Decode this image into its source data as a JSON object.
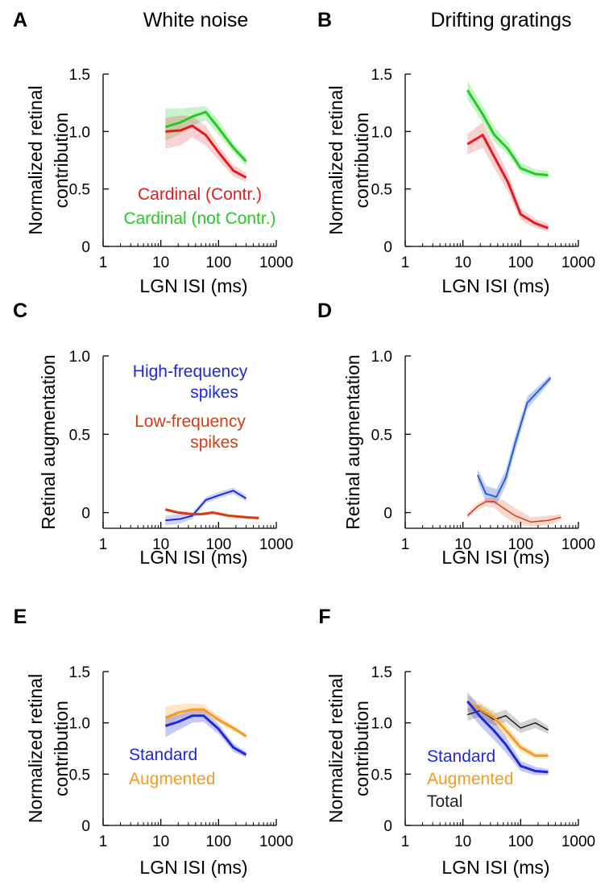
{
  "column_titles": [
    "White noise",
    "Drifting gratings"
  ],
  "colors": {
    "red": "#e8191c",
    "darkred": "#d93a10",
    "green": "#22cc22",
    "blue": "#1a28e0",
    "blue_light": "#2a5ed8",
    "orange": "#f39c1e",
    "black": "#222222"
  },
  "chart_data": [
    {
      "panel": "A",
      "type": "line",
      "xlabel": "LGN ISI (ms)",
      "ylabel": [
        "Normalized retinal",
        "contribution"
      ],
      "xscale": "log",
      "xlim": [
        1,
        1000
      ],
      "ylim": [
        0,
        1.5
      ],
      "xticks": [
        1,
        10,
        100,
        1000
      ],
      "xtick_labels": [
        "1",
        "10",
        "100",
        "1000"
      ],
      "yticks": [
        0,
        0.5,
        1.0,
        1.5
      ],
      "ytick_labels": [
        "0",
        "0.5",
        "1.0",
        "1.5"
      ],
      "series": [
        {
          "name": "Cardinal (not Contr.)",
          "color": "green",
          "width": 3,
          "band_opacity": 0.25,
          "x": [
            12,
            22,
            35,
            60,
            100,
            180,
            300
          ],
          "y": [
            1.04,
            1.08,
            1.13,
            1.17,
            1.03,
            0.86,
            0.74
          ],
          "lo": [
            0.92,
            0.98,
            1.05,
            1.1,
            0.97,
            0.82,
            0.7
          ],
          "hi": [
            1.2,
            1.2,
            1.21,
            1.22,
            1.1,
            0.9,
            0.78
          ]
        },
        {
          "name": "Cardinal (Contr.)",
          "color": "red",
          "width": 3,
          "band_opacity": 0.2,
          "x": [
            12,
            22,
            35,
            60,
            100,
            180,
            300
          ],
          "y": [
            1.0,
            1.01,
            1.05,
            0.97,
            0.82,
            0.66,
            0.6
          ],
          "lo": [
            0.85,
            0.88,
            0.95,
            0.88,
            0.75,
            0.61,
            0.56
          ],
          "hi": [
            1.12,
            1.14,
            1.13,
            1.05,
            0.88,
            0.71,
            0.64
          ]
        }
      ],
      "legend": [
        {
          "text": "Cardinal (Contr.)",
          "color": "red"
        },
        {
          "text": "Cardinal (not Contr.)",
          "color": "green"
        }
      ]
    },
    {
      "panel": "B",
      "type": "line",
      "xlabel": "LGN ISI (ms)",
      "ylabel": [
        "Normalized retinal",
        "contribution"
      ],
      "xscale": "log",
      "xlim": [
        1,
        1000
      ],
      "ylim": [
        0,
        1.5
      ],
      "xticks": [
        1,
        10,
        100,
        1000
      ],
      "xtick_labels": [
        "1",
        "10",
        "100",
        "1000"
      ],
      "yticks": [
        0,
        0.5,
        1.0,
        1.5
      ],
      "ytick_labels": [
        "0",
        "0.5",
        "1.0",
        "1.5"
      ],
      "series": [
        {
          "name": "Cardinal (not Contr.)",
          "color": "green",
          "width": 3,
          "band_opacity": 0.25,
          "x": [
            12,
            22,
            35,
            60,
            100,
            180,
            300
          ],
          "y": [
            1.36,
            1.15,
            0.97,
            0.85,
            0.68,
            0.63,
            0.62
          ],
          "lo": [
            1.28,
            1.08,
            0.91,
            0.8,
            0.64,
            0.6,
            0.59
          ],
          "hi": [
            1.44,
            1.22,
            1.04,
            0.91,
            0.73,
            0.67,
            0.66
          ]
        },
        {
          "name": "Cardinal (Contr.)",
          "color": "red",
          "width": 3,
          "band_opacity": 0.2,
          "x": [
            12,
            22,
            35,
            60,
            100,
            180,
            300
          ],
          "y": [
            0.89,
            0.97,
            0.78,
            0.56,
            0.28,
            0.2,
            0.16
          ],
          "lo": [
            0.8,
            0.86,
            0.68,
            0.48,
            0.23,
            0.16,
            0.13
          ],
          "hi": [
            0.98,
            1.08,
            0.88,
            0.64,
            0.33,
            0.24,
            0.2
          ]
        }
      ],
      "legend": []
    },
    {
      "panel": "C",
      "type": "line",
      "xlabel": "LGN ISI (ms)",
      "ylabel": [
        "Retinal augmentation"
      ],
      "xscale": "log",
      "xlim": [
        1,
        1000
      ],
      "ylim": [
        -0.1,
        1.0
      ],
      "xticks": [
        1,
        10,
        100,
        1000
      ],
      "xtick_labels": [
        "1",
        "10",
        "100",
        "1000"
      ],
      "yticks": [
        0,
        0.5,
        1.0
      ],
      "ytick_labels": [
        "0",
        "0.5",
        "1.0"
      ],
      "series": [
        {
          "name": "High-frequency spikes",
          "color": "blue",
          "width": 2,
          "band_opacity": 0.2,
          "x": [
            12,
            22,
            35,
            60,
            100,
            180,
            300
          ],
          "y": [
            -0.05,
            -0.04,
            -0.02,
            0.08,
            0.11,
            0.14,
            0.09
          ],
          "lo": [
            -0.08,
            -0.07,
            -0.04,
            0.06,
            0.09,
            0.12,
            0.07
          ],
          "hi": [
            -0.02,
            -0.01,
            0.0,
            0.1,
            0.13,
            0.16,
            0.11
          ]
        },
        {
          "name": "Low-frequency spikes",
          "color": "darkred",
          "width": 3,
          "band_opacity": 0.2,
          "x": [
            12,
            20,
            35,
            50,
            80,
            150,
            300,
            500
          ],
          "y": [
            0.02,
            0.0,
            -0.01,
            -0.01,
            0.0,
            -0.02,
            -0.03,
            -0.035
          ],
          "lo": [
            0.01,
            -0.01,
            -0.02,
            -0.02,
            -0.01,
            -0.03,
            -0.04,
            -0.045
          ],
          "hi": [
            0.03,
            0.01,
            0.0,
            0.0,
            0.01,
            -0.01,
            -0.02,
            -0.025
          ]
        }
      ],
      "legend": [
        {
          "text": [
            "High-frequency",
            "spikes"
          ],
          "color": "blue"
        },
        {
          "text": [
            "Low-frequency",
            "spikes"
          ],
          "color": "darkred"
        }
      ]
    },
    {
      "panel": "D",
      "type": "line",
      "xlabel": "LGN ISI (ms)",
      "ylabel": [
        "Retinal augmentation"
      ],
      "xscale": "log",
      "xlim": [
        1,
        1000
      ],
      "ylim": [
        -0.1,
        1.0
      ],
      "xticks": [
        1,
        10,
        100,
        1000
      ],
      "xtick_labels": [
        "1",
        "10",
        "100",
        "1000"
      ],
      "yticks": [
        0,
        0.5,
        1.0
      ],
      "ytick_labels": [
        "0",
        "0.5",
        "1.0"
      ],
      "series": [
        {
          "name": "High-frequency spikes",
          "color": "blue_light",
          "width": 2,
          "band_opacity": 0.3,
          "x": [
            18,
            25,
            38,
            55,
            80,
            130,
            330
          ],
          "y": [
            0.24,
            0.12,
            0.1,
            0.22,
            0.44,
            0.7,
            0.86
          ],
          "lo": [
            0.2,
            0.07,
            0.05,
            0.17,
            0.39,
            0.66,
            0.84
          ],
          "hi": [
            0.28,
            0.17,
            0.15,
            0.27,
            0.49,
            0.74,
            0.88
          ]
        },
        {
          "name": "Low-frequency spikes",
          "color": "darkred",
          "width": 1.5,
          "band_opacity": 0.2,
          "x": [
            12,
            18,
            25,
            35,
            50,
            80,
            150,
            300,
            500
          ],
          "y": [
            -0.02,
            0.04,
            0.07,
            0.07,
            0.03,
            -0.02,
            -0.06,
            -0.05,
            -0.03
          ],
          "lo": [
            -0.04,
            0.02,
            0.04,
            0.03,
            -0.02,
            -0.07,
            -0.09,
            -0.08,
            -0.05
          ],
          "hi": [
            0.0,
            0.06,
            0.09,
            0.1,
            0.08,
            0.03,
            -0.03,
            -0.02,
            -0.01
          ]
        }
      ],
      "legend": []
    },
    {
      "panel": "E",
      "type": "line",
      "xlabel": "LGN ISI (ms)",
      "ylabel": [
        "Normalized retinal",
        "contribution"
      ],
      "xscale": "log",
      "xlim": [
        1,
        1000
      ],
      "ylim": [
        0,
        1.5
      ],
      "xticks": [
        1,
        10,
        100,
        1000
      ],
      "xtick_labels": [
        "1",
        "10",
        "100",
        "1000"
      ],
      "yticks": [
        0,
        0.5,
        1.0,
        1.5
      ],
      "ytick_labels": [
        "0",
        "0.5",
        "1.0",
        "1.5"
      ],
      "series": [
        {
          "name": "Augmented",
          "color": "orange",
          "width": 3,
          "band_opacity": 0.25,
          "x": [
            12,
            20,
            35,
            55,
            100,
            180,
            300
          ],
          "y": [
            1.05,
            1.1,
            1.13,
            1.13,
            1.03,
            0.95,
            0.87
          ],
          "lo": [
            0.97,
            1.04,
            1.08,
            1.09,
            1.0,
            0.92,
            0.85
          ],
          "hi": [
            1.16,
            1.18,
            1.19,
            1.18,
            1.07,
            0.98,
            0.89
          ]
        },
        {
          "name": "Standard",
          "color": "blue",
          "width": 3,
          "band_opacity": 0.25,
          "x": [
            12,
            20,
            35,
            55,
            100,
            180,
            300
          ],
          "y": [
            0.97,
            1.01,
            1.07,
            1.07,
            0.94,
            0.76,
            0.69
          ],
          "lo": [
            0.86,
            0.93,
            1.0,
            1.01,
            0.89,
            0.72,
            0.66
          ],
          "hi": [
            1.06,
            1.08,
            1.12,
            1.12,
            0.99,
            0.8,
            0.72
          ]
        }
      ],
      "legend": [
        {
          "text": "Standard",
          "color": "blue"
        },
        {
          "text": "Augmented",
          "color": "orange"
        }
      ]
    },
    {
      "panel": "F",
      "type": "line",
      "xlabel": "LGN ISI (ms)",
      "ylabel": [
        "Normalized retinal",
        "contribution"
      ],
      "xscale": "log",
      "xlim": [
        1,
        1000
      ],
      "ylim": [
        0,
        1.5
      ],
      "xticks": [
        1,
        10,
        100,
        1000
      ],
      "xtick_labels": [
        "1",
        "10",
        "100",
        "1000"
      ],
      "yticks": [
        0,
        0.5,
        1.0,
        1.5
      ],
      "ytick_labels": [
        "0",
        "0.5",
        "1.0",
        "1.5"
      ],
      "series": [
        {
          "name": "Total",
          "color": "black",
          "width": 1.5,
          "band_opacity": 0.2,
          "x": [
            12,
            20,
            35,
            55,
            100,
            180,
            300
          ],
          "y": [
            1.08,
            1.12,
            1.03,
            1.07,
            0.95,
            1.0,
            0.93
          ],
          "lo": [
            1.02,
            1.06,
            0.97,
            1.01,
            0.9,
            0.95,
            0.89
          ],
          "hi": [
            1.14,
            1.18,
            1.09,
            1.13,
            1.0,
            1.05,
            0.97
          ]
        },
        {
          "name": "Augmented",
          "color": "orange",
          "width": 3,
          "band_opacity": 0.25,
          "x": [
            12,
            20,
            35,
            55,
            100,
            180,
            300
          ],
          "y": [
            1.2,
            1.13,
            1.05,
            0.93,
            0.76,
            0.68,
            0.68
          ],
          "lo": [
            1.13,
            1.06,
            0.98,
            0.87,
            0.72,
            0.65,
            0.65
          ],
          "hi": [
            1.27,
            1.2,
            1.12,
            0.99,
            0.8,
            0.71,
            0.71
          ]
        },
        {
          "name": "Standard",
          "color": "blue",
          "width": 3,
          "band_opacity": 0.25,
          "x": [
            12,
            20,
            35,
            55,
            100,
            180,
            300
          ],
          "y": [
            1.21,
            1.06,
            0.92,
            0.79,
            0.58,
            0.53,
            0.52
          ],
          "lo": [
            1.12,
            0.97,
            0.83,
            0.71,
            0.53,
            0.49,
            0.49
          ],
          "hi": [
            1.3,
            1.15,
            1.01,
            0.87,
            0.63,
            0.57,
            0.55
          ]
        }
      ],
      "legend": [
        {
          "text": "Standard",
          "color": "blue"
        },
        {
          "text": "Augmented",
          "color": "orange"
        },
        {
          "text": "Total",
          "color": "black"
        }
      ]
    }
  ]
}
